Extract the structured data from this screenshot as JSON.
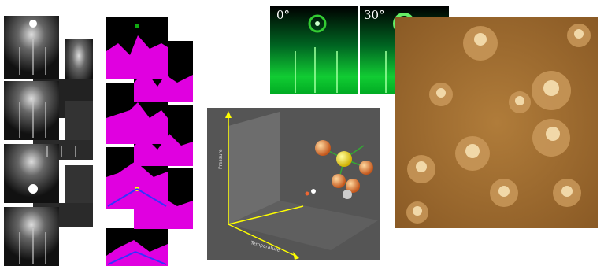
{
  "rheed_labels": [
    "0°",
    "30°"
  ],
  "plot_axes": {
    "vertical": "Pressure",
    "horizontal": "Temperature"
  }
}
